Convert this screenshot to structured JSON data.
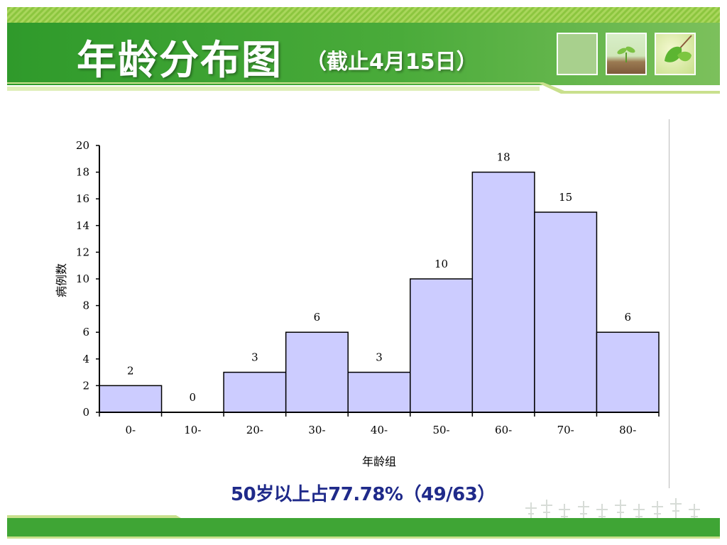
{
  "header": {
    "title": "年龄分布图",
    "subtitle": "（截止4月15日）",
    "thumbnails": [
      "plain-green-thumbnail",
      "seedling-soil-thumbnail",
      "green-leaf-thumbnail"
    ]
  },
  "colors": {
    "header_green": "#3fa535",
    "light_green": "#c9e08d",
    "bar_fill": "#ccccff",
    "bar_stroke": "#000000",
    "summary_text": "#1f2a8a"
  },
  "chart_data": {
    "type": "bar",
    "title": "",
    "xlabel": "年龄组",
    "ylabel": "病例数",
    "categories": [
      "0-",
      "10-",
      "20-",
      "30-",
      "40-",
      "50-",
      "60-",
      "70-",
      "80-"
    ],
    "values": [
      2,
      0,
      3,
      6,
      3,
      10,
      18,
      15,
      6
    ],
    "ylim": [
      0,
      20
    ],
    "yticks": [
      0,
      2,
      4,
      6,
      8,
      10,
      12,
      14,
      16,
      18,
      20
    ],
    "grid": false,
    "legend": "none",
    "data_labels": true
  },
  "summary": "50岁以上占77.78%（49/63）"
}
